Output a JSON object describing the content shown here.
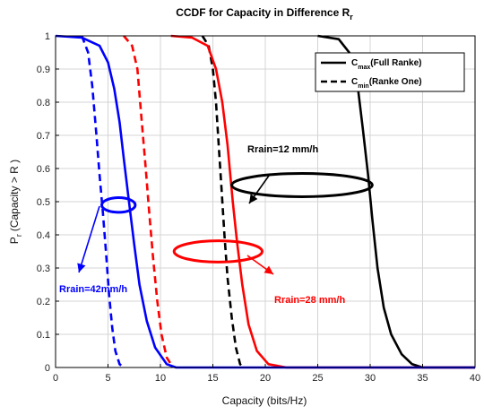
{
  "chart_data": {
    "type": "line",
    "title": "CCDF for Capacity in Difference R",
    "title_subscript": "r",
    "xlabel": "Capacity (bits/Hz)",
    "ylabel": "P",
    "ylabel_subscript": "r",
    "ylabel_suffix": "(Capacity > R )",
    "xlim": [
      0,
      40
    ],
    "ylim": [
      0,
      1
    ],
    "xticks": [
      0,
      5,
      10,
      15,
      20,
      25,
      30,
      35,
      40
    ],
    "yticks": [
      0,
      0.1,
      0.2,
      0.3,
      0.4,
      0.5,
      0.6,
      0.7,
      0.8,
      0.9,
      1
    ],
    "grid": true,
    "legend": {
      "placement": "top-right",
      "entries": [
        {
          "base": "C",
          "sub": "max",
          "text": "(Full Ranke)",
          "style": "solid"
        },
        {
          "base": "C",
          "sub": "min",
          "text": "(Ranke One)",
          "style": "dashed"
        }
      ]
    },
    "colors": {
      "rain42": "#0000ff",
      "rain28": "#ff0000",
      "rain12": "#000000"
    },
    "series": [
      {
        "group": "rain12",
        "style": "solid",
        "color": "#000000",
        "x": [
          25,
          27,
          28,
          28.8,
          29.3,
          29.8,
          30.2,
          30.7,
          31.3,
          32,
          33,
          34,
          35,
          40
        ],
        "y": [
          1,
          0.99,
          0.95,
          0.85,
          0.72,
          0.58,
          0.45,
          0.3,
          0.18,
          0.1,
          0.04,
          0.01,
          0,
          0
        ]
      },
      {
        "group": "rain12",
        "style": "dashed",
        "color": "#000000",
        "x": [
          14,
          14.6,
          15,
          15.3,
          15.6,
          15.8,
          16.1,
          16.4,
          16.8,
          17.2,
          17.6,
          18
        ],
        "y": [
          1,
          0.97,
          0.9,
          0.8,
          0.65,
          0.55,
          0.4,
          0.27,
          0.15,
          0.06,
          0.01,
          0
        ]
      },
      {
        "group": "rain28",
        "style": "solid",
        "color": "#ff0000",
        "x": [
          11,
          13,
          14.5,
          15.3,
          15.9,
          16.4,
          16.9,
          17.3,
          17.8,
          18.4,
          19.2,
          20.3,
          22,
          40
        ],
        "y": [
          1,
          0.995,
          0.97,
          0.9,
          0.8,
          0.67,
          0.5,
          0.38,
          0.25,
          0.13,
          0.05,
          0.01,
          0,
          0
        ]
      },
      {
        "group": "rain28",
        "style": "dashed",
        "color": "#ff0000",
        "x": [
          6.5,
          7.3,
          7.8,
          8.2,
          8.6,
          8.9,
          9.3,
          9.7,
          10.1,
          10.6,
          11.2
        ],
        "y": [
          1,
          0.97,
          0.9,
          0.75,
          0.6,
          0.48,
          0.33,
          0.2,
          0.1,
          0.03,
          0
        ]
      },
      {
        "group": "rain42",
        "style": "solid",
        "color": "#0000ff",
        "x": [
          0,
          2.5,
          4.2,
          5,
          5.6,
          6.1,
          6.5,
          7,
          7.5,
          8,
          8.7,
          9.5,
          10.6,
          11.5,
          40
        ],
        "y": [
          1,
          0.995,
          0.97,
          0.92,
          0.84,
          0.74,
          0.63,
          0.5,
          0.37,
          0.25,
          0.14,
          0.06,
          0.01,
          0,
          0
        ]
      },
      {
        "group": "rain42",
        "style": "dashed",
        "color": "#0000ff",
        "x": [
          2.5,
          3.1,
          3.5,
          3.9,
          4.2,
          4.5,
          4.8,
          5.1,
          5.4,
          5.7,
          6.1,
          6.5
        ],
        "y": [
          1,
          0.95,
          0.85,
          0.7,
          0.58,
          0.47,
          0.35,
          0.22,
          0.12,
          0.05,
          0.01,
          0
        ]
      }
    ],
    "annotations": [
      {
        "group": "rain12",
        "text": "Rrain=12 mm/h",
        "color": "#000000"
      },
      {
        "group": "rain28",
        "text": "Rrain=28 mm/h",
        "color": "#ff0000"
      },
      {
        "group": "rain42",
        "text": "Rrain=42mm/h",
        "color": "#0000ff"
      }
    ],
    "ellipses": [
      {
        "group": "rain12",
        "cx": 23.5,
        "cy": 0.55,
        "rx": 6.7,
        "ry": 0.035,
        "color": "#000000"
      },
      {
        "group": "rain28",
        "cx": 15.5,
        "cy": 0.35,
        "rx": 4.2,
        "ry": 0.032,
        "color": "#ff0000"
      },
      {
        "group": "rain42",
        "cx": 6,
        "cy": 0.49,
        "rx": 1.6,
        "ry": 0.022,
        "color": "#0000ff"
      }
    ]
  }
}
